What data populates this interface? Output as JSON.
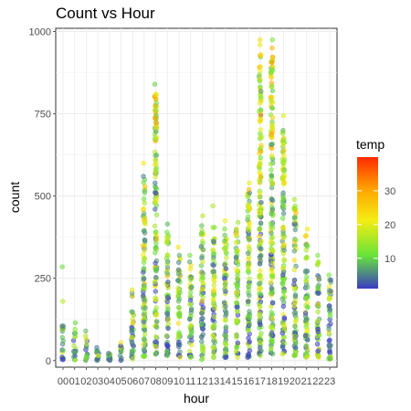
{
  "chart_data": {
    "type": "scatter",
    "title": "Count vs Hour",
    "xlabel": "hour",
    "ylabel": "count",
    "categories": [
      "00",
      "01",
      "02",
      "03",
      "04",
      "05",
      "06",
      "07",
      "08",
      "09",
      "10",
      "11",
      "12",
      "13",
      "14",
      "15",
      "16",
      "17",
      "18",
      "19",
      "20",
      "21",
      "22",
      "23"
    ],
    "ylim": [
      -20,
      1010
    ],
    "yticks": [
      0,
      250,
      500,
      750,
      1000
    ],
    "grid": true,
    "legend": {
      "title": "temp",
      "ticks": [
        10,
        20,
        30
      ],
      "range": [
        1,
        40
      ],
      "placement": "right",
      "colors": [
        "#3a3dc2",
        "#67e23a",
        "#f4ed12",
        "#ffa600",
        "#ff2a00"
      ]
    },
    "series": [
      {
        "hour": "00",
        "min": 3,
        "max": 105,
        "outliers": [
          180,
          285
        ]
      },
      {
        "hour": "01",
        "min": 2,
        "max": 95,
        "outliers": [
          115
        ]
      },
      {
        "hour": "02",
        "min": 1,
        "max": 65,
        "outliers": [
          75,
          90
        ]
      },
      {
        "hour": "03",
        "min": 1,
        "max": 30,
        "outliers": [
          40
        ]
      },
      {
        "hour": "04",
        "min": 1,
        "max": 22,
        "outliers": []
      },
      {
        "hour": "05",
        "min": 1,
        "max": 45,
        "outliers": [
          55
        ]
      },
      {
        "hour": "06",
        "min": 5,
        "max": 205,
        "outliers": [
          215
        ]
      },
      {
        "hour": "07",
        "min": 12,
        "max": 560,
        "outliers": [
          600
        ]
      },
      {
        "hour": "08",
        "min": 20,
        "max": 810,
        "outliers": [
          840
        ]
      },
      {
        "hour": "09",
        "min": 15,
        "max": 390,
        "outliers": [
          415
        ]
      },
      {
        "hour": "10",
        "min": 10,
        "max": 320,
        "outliers": [
          345
        ]
      },
      {
        "hour": "11",
        "min": 10,
        "max": 300,
        "outliers": [
          320
        ]
      },
      {
        "hour": "12",
        "min": 3,
        "max": 410,
        "outliers": [
          440
        ]
      },
      {
        "hour": "13",
        "min": 10,
        "max": 405,
        "outliers": [
          470
        ]
      },
      {
        "hour": "14",
        "min": 10,
        "max": 400,
        "outliers": [
          425
        ]
      },
      {
        "hour": "15",
        "min": 10,
        "max": 400,
        "outliers": [
          420
        ]
      },
      {
        "hour": "16",
        "min": 10,
        "max": 520,
        "outliers": [
          540
        ]
      },
      {
        "hour": "17",
        "min": 15,
        "max": 930,
        "outliers": [
          960,
          975
        ]
      },
      {
        "hour": "18",
        "min": 20,
        "max": 950,
        "outliers": [
          975
        ]
      },
      {
        "hour": "19",
        "min": 20,
        "max": 700,
        "outliers": [
          745
        ]
      },
      {
        "hour": "20",
        "min": 15,
        "max": 470,
        "outliers": [
          490
        ]
      },
      {
        "hour": "21",
        "min": 10,
        "max": 380,
        "outliers": [
          400
        ]
      },
      {
        "hour": "22",
        "min": 10,
        "max": 300,
        "outliers": [
          320
        ]
      },
      {
        "hour": "23",
        "min": 5,
        "max": 245,
        "outliers": [
          260
        ]
      }
    ]
  }
}
